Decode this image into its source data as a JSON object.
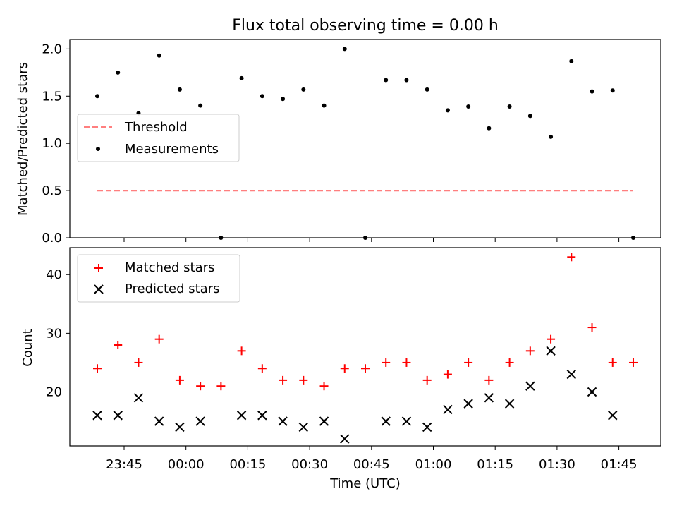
{
  "chart_data": [
    {
      "type": "scatter",
      "title": "Flux total observing time = 0.00 h",
      "ylabel": "Matched/Predicted stars",
      "xlabel": "",
      "ylim": [
        0,
        2.1
      ],
      "yticks": [
        "0.0",
        "0.5",
        "1.0",
        "1.5",
        "2.0"
      ],
      "legend_position": "middle-left",
      "series": [
        {
          "name": "Threshold",
          "style": "dashed-line",
          "color": "#ff7f7f",
          "x": [
            0,
            25.983
          ],
          "values": [
            0.5,
            0.5
          ]
        },
        {
          "name": "Measurements",
          "style": "dot",
          "color": "#000000",
          "x": [
            0,
            1,
            2,
            3,
            4,
            5,
            6,
            7,
            8,
            9,
            10,
            11,
            12,
            13,
            14,
            15,
            16,
            17,
            18,
            19,
            20,
            21,
            22,
            23,
            24,
            25,
            26
          ],
          "values": [
            1.5,
            1.75,
            1.32,
            1.93,
            1.57,
            1.4,
            0.0,
            1.69,
            1.5,
            1.47,
            1.57,
            1.4,
            2.0,
            0.0,
            1.67,
            1.67,
            1.57,
            1.35,
            1.39,
            1.16,
            1.39,
            1.29,
            1.07,
            1.87,
            1.55,
            1.56,
            0.0
          ]
        }
      ]
    },
    {
      "type": "scatter",
      "title": "",
      "xlabel": "Time (UTC)",
      "ylabel": "Count",
      "ylim": [
        10.8,
        44.6
      ],
      "yticks": [
        "20",
        "30",
        "40"
      ],
      "xticks": [
        "23:45",
        "00:00",
        "00:15",
        "00:30",
        "00:45",
        "01:00",
        "01:15",
        "01:30",
        "01:45"
      ],
      "legend_position": "upper-left",
      "series": [
        {
          "name": "Matched stars",
          "marker": "plus",
          "color": "#ff0000",
          "x": [
            0,
            1,
            2,
            3,
            4,
            5,
            6,
            7,
            8,
            9,
            10,
            11,
            12,
            13,
            14,
            15,
            16,
            17,
            18,
            19,
            20,
            21,
            22,
            23,
            24,
            25,
            26
          ],
          "values": [
            24,
            28,
            25,
            29,
            22,
            21,
            21,
            27,
            24,
            22,
            22,
            21,
            24,
            24,
            25,
            25,
            22,
            23,
            25,
            22,
            25,
            27,
            29,
            43,
            31,
            25,
            25
          ]
        },
        {
          "name": "Predicted stars",
          "marker": "x",
          "color": "#000000",
          "x": [
            0,
            1,
            2,
            3,
            4,
            5,
            7,
            8,
            9,
            10,
            11,
            12,
            14,
            15,
            16,
            17,
            18,
            19,
            20,
            21,
            22,
            23,
            24,
            25
          ],
          "values": [
            16,
            16,
            19,
            15,
            14,
            15,
            16,
            16,
            15,
            14,
            15,
            12,
            15,
            15,
            14,
            17,
            18,
            19,
            18,
            21,
            27,
            23,
            20,
            16
          ]
        }
      ]
    }
  ]
}
